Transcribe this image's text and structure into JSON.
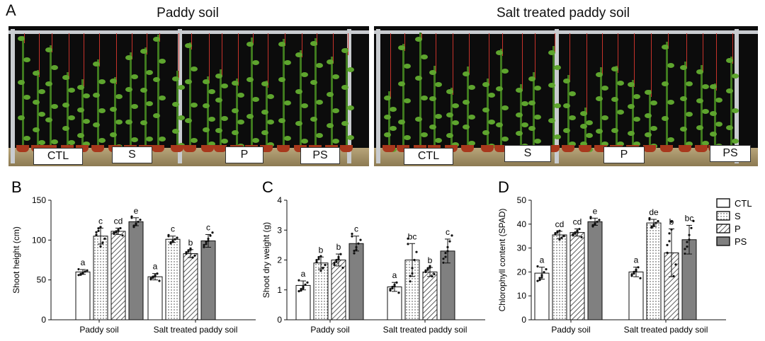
{
  "panel_a": {
    "letter": "A",
    "left_title": "Paddy soil",
    "right_title": "Salt treated paddy soil",
    "left_labels": [
      "CTL",
      "S",
      "P",
      "PS"
    ],
    "right_labels": [
      "CTL",
      "S",
      "P",
      "PS"
    ]
  },
  "legend": {
    "entries": [
      "CTL",
      "S",
      "P",
      "PS"
    ]
  },
  "colors": {
    "CTL": "#ffffff",
    "S": "#ffffff",
    "P": "#ffffff",
    "PS": "#808080"
  },
  "chart_data": [
    {
      "type": "bar",
      "letter": "B",
      "ylabel": "Shoot height (cm)",
      "ylim": [
        0,
        150
      ],
      "yticks": [
        "0",
        "50",
        "100",
        "150"
      ],
      "categories": [
        "Paddy soil",
        "Salt treated paddy soil"
      ],
      "series": [
        {
          "name": "CTL",
          "values": [
            60,
            54
          ],
          "errors": [
            3,
            4
          ],
          "letters": [
            "a",
            "a"
          ]
        },
        {
          "name": "S",
          "values": [
            105,
            101
          ],
          "errors": [
            10,
            4
          ],
          "letters": [
            "c",
            "c"
          ]
        },
        {
          "name": "P",
          "values": [
            111,
            83
          ],
          "errors": [
            4,
            5
          ],
          "letters": [
            "cd",
            "b"
          ]
        },
        {
          "name": "PS",
          "values": [
            123,
            99
          ],
          "errors": [
            5,
            8
          ],
          "letters": [
            "e",
            "c"
          ]
        }
      ]
    },
    {
      "type": "bar",
      "letter": "C",
      "ylabel": "Shoot dry weight (g)",
      "ylim": [
        0,
        4
      ],
      "yticks": [
        "0",
        "1",
        "2",
        "3",
        "4"
      ],
      "categories": [
        "Paddy soil",
        "Salt treated paddy soil"
      ],
      "series": [
        {
          "name": "CTL",
          "values": [
            1.15,
            1.1
          ],
          "errors": [
            0.15,
            0.15
          ],
          "letters": [
            "a",
            "a"
          ]
        },
        {
          "name": "S",
          "values": [
            1.9,
            2.0
          ],
          "errors": [
            0.2,
            0.55
          ],
          "letters": [
            "b",
            "bc"
          ]
        },
        {
          "name": "P",
          "values": [
            2.0,
            1.6
          ],
          "errors": [
            0.2,
            0.15
          ],
          "letters": [
            "b",
            "b"
          ]
        },
        {
          "name": "PS",
          "values": [
            2.55,
            2.3
          ],
          "errors": [
            0.25,
            0.4
          ],
          "letters": [
            "c",
            "c"
          ]
        }
      ]
    },
    {
      "type": "bar",
      "letter": "D",
      "ylabel": "Chlorophyll content (SPAD)",
      "ylim": [
        0,
        50
      ],
      "yticks": [
        "0",
        "10",
        "20",
        "30",
        "40",
        "50"
      ],
      "categories": [
        "Paddy soil",
        "Salt treated paddy soil"
      ],
      "series": [
        {
          "name": "CTL",
          "values": [
            19.5,
            20
          ],
          "errors": [
            2.5,
            2
          ],
          "letters": [
            "a",
            "a"
          ]
        },
        {
          "name": "S",
          "values": [
            35.5,
            40.5
          ],
          "errors": [
            1.5,
            1.5
          ],
          "letters": [
            "cd",
            "de"
          ]
        },
        {
          "name": "P",
          "values": [
            36.5,
            28
          ],
          "errors": [
            1.5,
            10
          ],
          "letters": [
            "cd",
            "b"
          ]
        },
        {
          "name": "PS",
          "values": [
            41,
            33.5
          ],
          "errors": [
            1.5,
            6
          ],
          "letters": [
            "e",
            "bc"
          ]
        }
      ]
    }
  ]
}
